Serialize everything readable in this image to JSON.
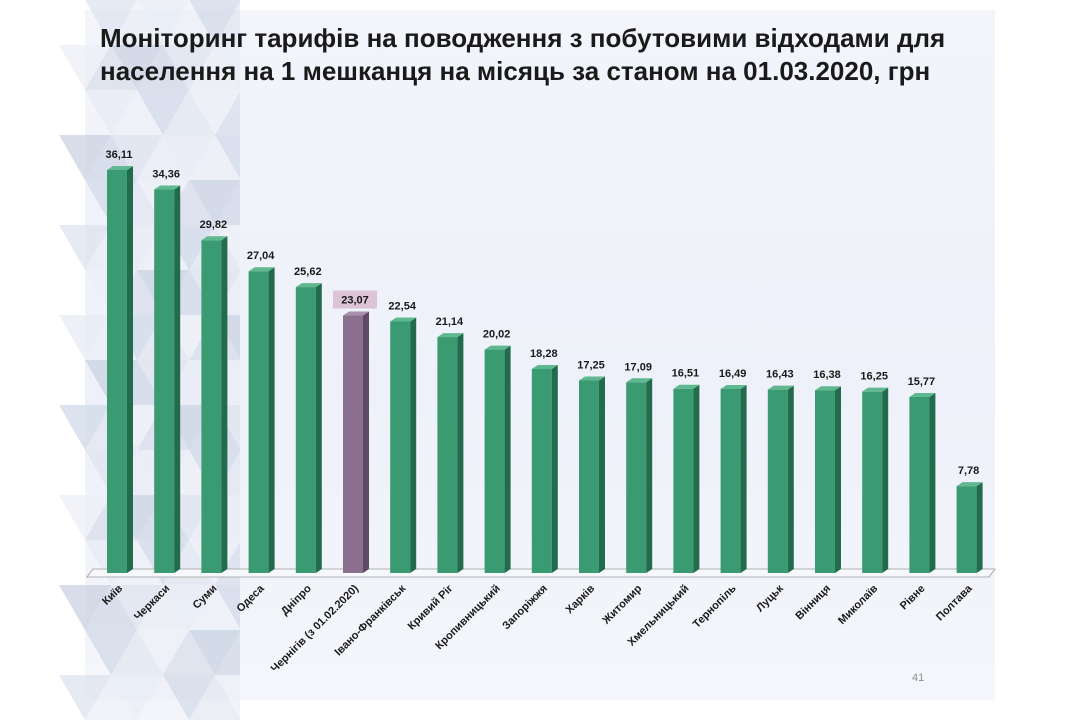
{
  "title_line1": "Моніторинг тарифів на поводження з побутовими відходами для",
  "title_line2": "населення на 1 мешканця на місяць за станом на 01.03.2020, грн",
  "page_number": "41",
  "colors": {
    "bar": "#3a9a72",
    "bar_highlight": "#8a6f8e",
    "label_highlight_bg": "#dcc4d6"
  },
  "chart_data": {
    "type": "bar",
    "categories": [
      "Київ",
      "Черкаси",
      "Суми",
      "Одеса",
      "Дніпро",
      "Чернігів (з 01.02.2020)",
      "Івано-Франківськ",
      "Кривий Ріг",
      "Кропивницький",
      "Запоріжжя",
      "Харків",
      "Житомир",
      "Хмельницький",
      "Тернопіль",
      "Луцьк",
      "Вінниця",
      "Миколаїв",
      "Рівне",
      "Полтава"
    ],
    "values": [
      36.11,
      34.36,
      29.82,
      27.04,
      25.62,
      23.07,
      22.54,
      21.14,
      20.02,
      18.28,
      17.25,
      17.09,
      16.51,
      16.49,
      16.43,
      16.38,
      16.25,
      15.77,
      7.78
    ],
    "data_labels": [
      "36,11",
      "34,36",
      "29,82",
      "27,04",
      "25,62",
      "23,07",
      "22,54",
      "21,14",
      "20,02",
      "18,28",
      "17,25",
      "17,09",
      "16,51",
      "16,49",
      "16,43",
      "16,38",
      "16,25",
      "15,77",
      "7,78"
    ],
    "highlight_index": 5,
    "title": "Моніторинг тарифів на поводження з побутовими відходами для населення на 1 мешканця на місяць за станом на 01.03.2020, грн",
    "ylim": [
      0,
      36.11
    ],
    "grid": false,
    "legend": "none"
  }
}
